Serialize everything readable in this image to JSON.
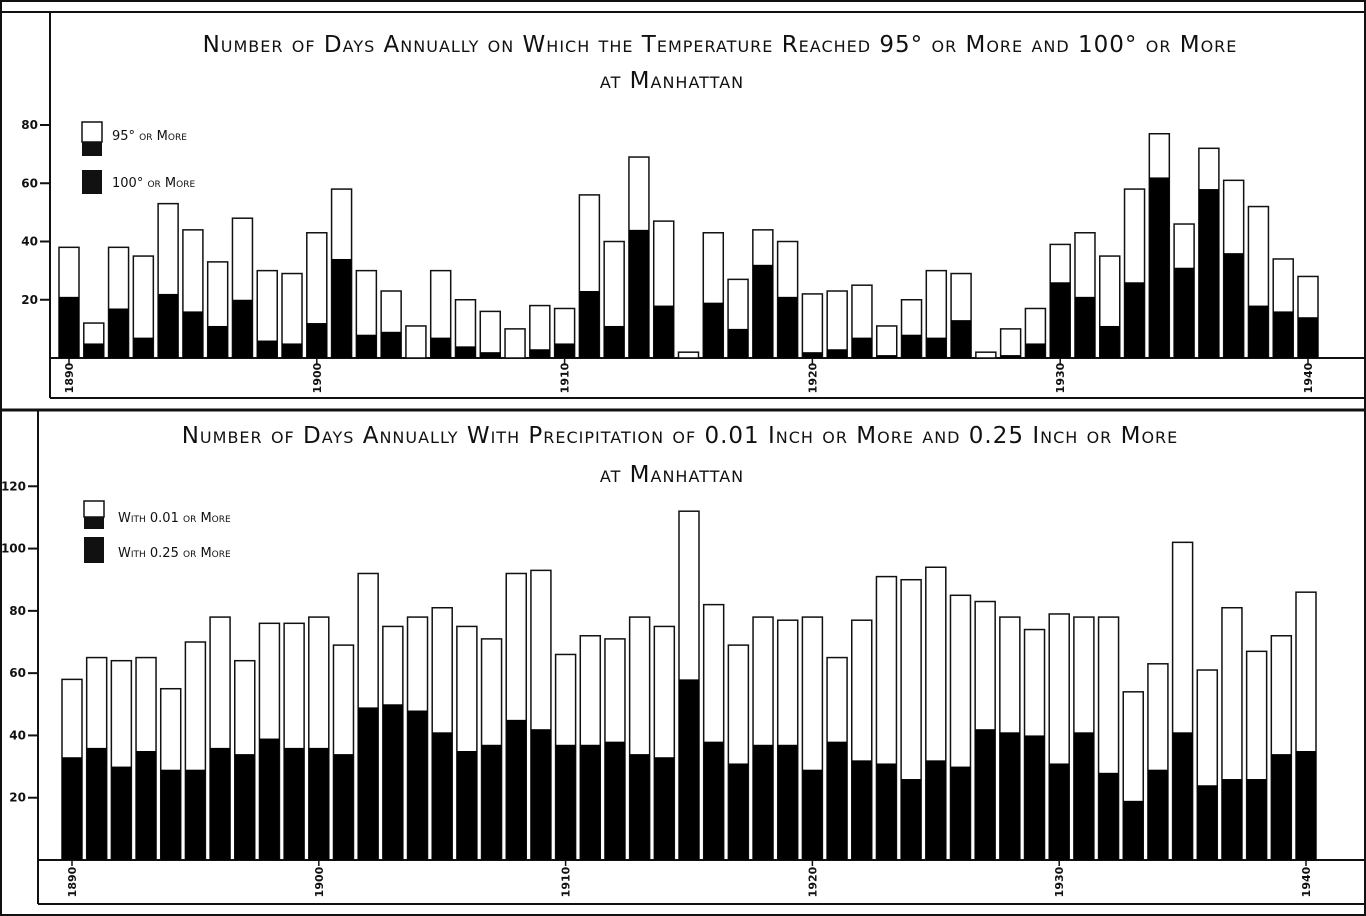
{
  "chart_data": [
    {
      "type": "bar",
      "title": "Number of Days Annually on Which the Temperature Reached 95° or More and 100° or More",
      "subtitle": "at Manhattan",
      "ylim": [
        0,
        80
      ],
      "yticks": [
        20,
        40,
        60,
        80
      ],
      "ytick_labels": [
        "20",
        "40",
        "60",
        "80"
      ],
      "xticks": [
        1890,
        1900,
        1910,
        1920,
        1930,
        1940
      ],
      "xtick_labels": [
        "1890",
        "1900",
        "1910",
        "1920",
        "1930",
        "1940"
      ],
      "legend_placement": "top-left",
      "categories": [
        1890,
        1891,
        1892,
        1893,
        1894,
        1895,
        1896,
        1897,
        1898,
        1899,
        1900,
        1901,
        1902,
        1903,
        1904,
        1905,
        1906,
        1907,
        1908,
        1909,
        1910,
        1911,
        1912,
        1913,
        1914,
        1915,
        1916,
        1917,
        1918,
        1919,
        1920,
        1921,
        1922,
        1923,
        1924,
        1925,
        1926,
        1927,
        1928,
        1929,
        1930,
        1931,
        1932,
        1933,
        1934,
        1935,
        1936,
        1937,
        1938,
        1939,
        1940
      ],
      "series": [
        {
          "name": "95° or More",
          "color": "#ffffff",
          "values": [
            38,
            12,
            38,
            35,
            53,
            44,
            33,
            48,
            30,
            29,
            43,
            58,
            30,
            23,
            11,
            30,
            20,
            16,
            10,
            18,
            17,
            56,
            40,
            69,
            47,
            2,
            43,
            27,
            44,
            40,
            22,
            23,
            25,
            11,
            20,
            30,
            29,
            2,
            10,
            17,
            39,
            43,
            35,
            58,
            77,
            46,
            72,
            61,
            52,
            34,
            28
          ]
        },
        {
          "name": "100° or More",
          "color": "#000000",
          "values": [
            21,
            5,
            17,
            7,
            22,
            16,
            11,
            20,
            6,
            5,
            12,
            34,
            8,
            9,
            0,
            7,
            4,
            2,
            0,
            3,
            5,
            23,
            11,
            44,
            18,
            0,
            19,
            10,
            32,
            21,
            2,
            3,
            7,
            1,
            8,
            7,
            13,
            0,
            1,
            5,
            26,
            21,
            11,
            26,
            62,
            31,
            58,
            36,
            18,
            16,
            14
          ]
        }
      ]
    },
    {
      "type": "bar",
      "title": "Number of Days Annually With Precipitation of 0.01 Inch or More and 0.25 Inch or More",
      "subtitle": "at Manhattan",
      "ylim": [
        0,
        140
      ],
      "yticks": [
        20,
        40,
        60,
        80,
        100,
        120
      ],
      "ytick_labels": [
        "20",
        "40",
        "60",
        "80",
        "100",
        "120"
      ],
      "xticks": [
        1890,
        1900,
        1910,
        1920,
        1930,
        1940
      ],
      "xtick_labels": [
        "1890",
        "1900",
        "1910",
        "1920",
        "1930",
        "1940"
      ],
      "legend_placement": "top-left",
      "categories": [
        1890,
        1891,
        1892,
        1893,
        1894,
        1895,
        1896,
        1897,
        1898,
        1899,
        1900,
        1901,
        1902,
        1903,
        1904,
        1905,
        1906,
        1907,
        1908,
        1909,
        1910,
        1911,
        1912,
        1913,
        1914,
        1915,
        1916,
        1917,
        1918,
        1919,
        1920,
        1921,
        1922,
        1923,
        1924,
        1925,
        1926,
        1927,
        1928,
        1929,
        1930,
        1931,
        1932,
        1933,
        1934,
        1935,
        1936,
        1937,
        1938,
        1939,
        1940
      ],
      "series": [
        {
          "name": "With 0.01 or More",
          "color": "#ffffff",
          "values": [
            58,
            65,
            64,
            65,
            55,
            70,
            78,
            64,
            76,
            76,
            78,
            69,
            92,
            75,
            78,
            81,
            75,
            71,
            92,
            93,
            66,
            72,
            71,
            78,
            75,
            112,
            82,
            69,
            78,
            77,
            78,
            65,
            77,
            91,
            90,
            94,
            85,
            83,
            78,
            74,
            79,
            78,
            78,
            54,
            63,
            102,
            61,
            81,
            67,
            72,
            86
          ]
        },
        {
          "name": "With 0.25 or More",
          "color": "#000000",
          "values": [
            33,
            36,
            30,
            35,
            29,
            29,
            36,
            34,
            39,
            36,
            36,
            34,
            49,
            50,
            48,
            41,
            35,
            37,
            45,
            42,
            37,
            37,
            38,
            34,
            33,
            58,
            38,
            31,
            37,
            37,
            29,
            38,
            32,
            31,
            26,
            32,
            30,
            42,
            41,
            40,
            31,
            41,
            28,
            19,
            29,
            41,
            24,
            26,
            26,
            34,
            35
          ]
        }
      ]
    }
  ]
}
